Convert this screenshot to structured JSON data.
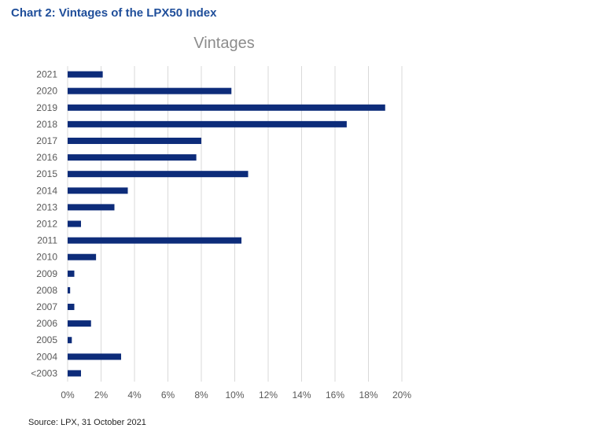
{
  "heading": "Chart 2: Vintages of the LPX50 Index",
  "source": "Source: LPX, 31 October 2021",
  "colors": {
    "heading": "#1f4e9a",
    "bar": "#0d2c7a",
    "grid": "#d9d9d9",
    "tick_text": "#595959",
    "chart_title": "#8c8c8c"
  },
  "chart_data": {
    "type": "bar",
    "orientation": "horizontal",
    "title": "Vintages",
    "xlabel": "",
    "ylabel": "",
    "xlim": [
      0,
      20
    ],
    "x_ticks": [
      0,
      2,
      4,
      6,
      8,
      10,
      12,
      14,
      16,
      18,
      20
    ],
    "x_tick_labels": [
      "0%",
      "2%",
      "4%",
      "6%",
      "8%",
      "10%",
      "12%",
      "14%",
      "16%",
      "18%",
      "20%"
    ],
    "grid": "vertical",
    "legend": "none",
    "categories": [
      "2021",
      "2020",
      "2019",
      "2018",
      "2017",
      "2016",
      "2015",
      "2014",
      "2013",
      "2012",
      "2011",
      "2010",
      "2009",
      "2008",
      "2007",
      "2006",
      "2005",
      "2004",
      "<2003"
    ],
    "values": [
      2.1,
      9.8,
      19.0,
      16.7,
      8.0,
      7.7,
      10.8,
      3.6,
      2.8,
      0.8,
      10.4,
      1.7,
      0.4,
      0.15,
      0.4,
      1.4,
      0.25,
      3.2,
      0.8
    ],
    "value_unit": "%"
  }
}
